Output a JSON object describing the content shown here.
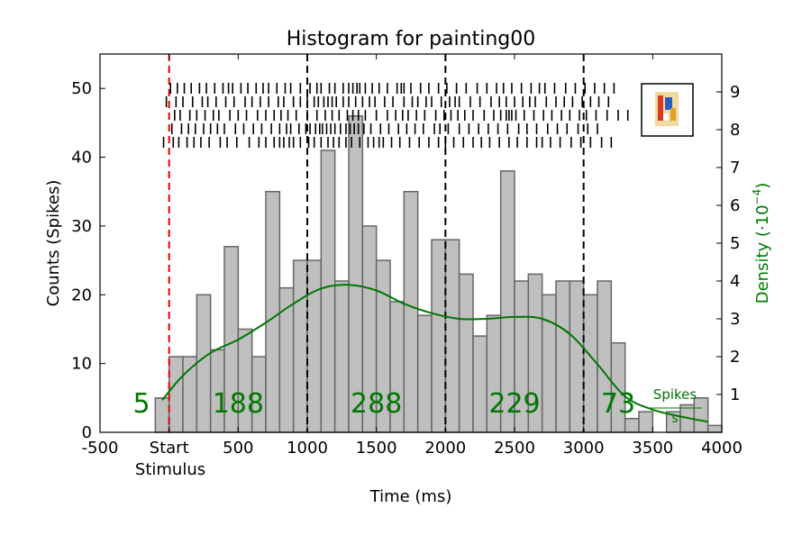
{
  "chart_data": {
    "type": "bar",
    "title": "Histogram for painting00",
    "xlabel": "Time (ms)",
    "ylabel": "Counts (Spikes)",
    "y2label": "Density (·10",
    "y2label_exp": "−4",
    "y2label_close": ")",
    "xlim": [
      -500,
      4000
    ],
    "ylim": [
      0,
      55
    ],
    "y2lim": [
      0,
      10
    ],
    "x_ticks": [
      "-500",
      "Start",
      "500",
      "1000",
      "1500",
      "2000",
      "2500",
      "3000",
      "3500",
      "4000"
    ],
    "x_tick_values": [
      -500,
      0,
      500,
      1000,
      1500,
      2000,
      2500,
      3000,
      3500,
      4000
    ],
    "x_tick_sublabel": "Stimulus",
    "y_ticks": [
      0,
      10,
      20,
      30,
      40,
      50
    ],
    "y2_ticks": [
      1,
      2,
      3,
      4,
      5,
      6,
      7,
      8,
      9
    ],
    "bin_width": 100,
    "histogram": {
      "bin_starts": [
        -100,
        0,
        100,
        200,
        300,
        400,
        500,
        600,
        700,
        800,
        900,
        1000,
        1100,
        1200,
        1300,
        1400,
        1500,
        1600,
        1700,
        1800,
        1900,
        2000,
        2100,
        2200,
        2300,
        2400,
        2500,
        2600,
        2700,
        2800,
        2900,
        3000,
        3100,
        3200,
        3300,
        3400,
        3500,
        3600,
        3700,
        3800,
        3900
      ],
      "counts": [
        5,
        11,
        11,
        20,
        12,
        27,
        15,
        11,
        35,
        21,
        25,
        25,
        41,
        22,
        46,
        30,
        25,
        19,
        35,
        17,
        28,
        28,
        23,
        14,
        17,
        38,
        22,
        23,
        20,
        22,
        22,
        20,
        22,
        13,
        2,
        3,
        0,
        3,
        4,
        5,
        1
      ]
    },
    "density_series": {
      "name": "density",
      "color": "#007700",
      "x": [
        -50,
        100,
        300,
        500,
        700,
        900,
        1100,
        1300,
        1500,
        1700,
        1900,
        2100,
        2300,
        2500,
        2700,
        2900,
        3100,
        3300,
        3500,
        3700,
        3900
      ],
      "y": [
        0.85,
        1.5,
        2.1,
        2.45,
        2.9,
        3.4,
        3.8,
        3.9,
        3.75,
        3.4,
        3.15,
        3.0,
        3.0,
        3.05,
        3.0,
        2.6,
        1.8,
        0.95,
        0.6,
        0.42,
        0.28
      ]
    },
    "segment_boundaries": [
      1000,
      2000,
      3000
    ],
    "stimulus_onset": 0,
    "segment_counts": [
      {
        "label": "5",
        "x": -200
      },
      {
        "label": "188",
        "x": 500
      },
      {
        "label": "288",
        "x": 1500
      },
      {
        "label": "229",
        "x": 2500
      },
      {
        "label": "73",
        "x": 3250
      }
    ],
    "density_unit_numerator": "Spikes",
    "density_unit_denominator": "s",
    "raster_trials": 5,
    "raster_spikes": [
      [
        10,
        60,
        110,
        160,
        220,
        270,
        330,
        390,
        430,
        460,
        520,
        570,
        630,
        680,
        720,
        780,
        840,
        880,
        950,
        1020,
        1070,
        1100,
        1160,
        1200,
        1260,
        1300,
        1330,
        1360,
        1380,
        1420,
        1470,
        1520,
        1580,
        1650,
        1680,
        1700,
        1750,
        1820,
        1880,
        1950,
        2010,
        2080,
        2150,
        2230,
        2300,
        2370,
        2420,
        2480,
        2550,
        2620,
        2680,
        2720,
        2790,
        2870,
        2940,
        3010,
        3080,
        3150,
        3220
      ],
      [
        -20,
        50,
        100,
        170,
        240,
        280,
        340,
        410,
        470,
        550,
        600,
        660,
        720,
        790,
        830,
        900,
        950,
        1000,
        1050,
        1080,
        1120,
        1150,
        1180,
        1210,
        1260,
        1300,
        1350,
        1400,
        1450,
        1490,
        1560,
        1620,
        1700,
        1760,
        1800,
        1860,
        1900,
        1970,
        2030,
        2070,
        2100,
        2180,
        2250,
        2330,
        2390,
        2440,
        2500,
        2560,
        2610,
        2650,
        2730,
        2800,
        2860,
        2920,
        2990,
        3050,
        3110,
        3180
      ],
      [
        40,
        80,
        150,
        200,
        260,
        320,
        360,
        440,
        500,
        560,
        640,
        700,
        760,
        810,
        860,
        920,
        1000,
        1070,
        1130,
        1180,
        1230,
        1290,
        1330,
        1370,
        1420,
        1500,
        1580,
        1640,
        1690,
        1730,
        1790,
        1850,
        1930,
        1990,
        2040,
        2090,
        2140,
        2200,
        2280,
        2350,
        2400,
        2440,
        2460,
        2480,
        2510,
        2570,
        2640,
        2710,
        2770,
        2840,
        2900,
        2970,
        3020,
        3090,
        3170,
        3250,
        3320
      ],
      [
        20,
        90,
        140,
        190,
        250,
        300,
        350,
        400,
        480,
        540,
        610,
        670,
        740,
        800,
        850,
        880,
        940,
        990,
        1020,
        1060,
        1090,
        1110,
        1140,
        1170,
        1200,
        1240,
        1280,
        1310,
        1340,
        1370,
        1410,
        1460,
        1530,
        1590,
        1660,
        1720,
        1780,
        1840,
        1920,
        1960,
        2020,
        2100,
        2170,
        2240,
        2310,
        2380,
        2450,
        2530,
        2590,
        2660,
        2740,
        2810,
        2880,
        2960,
        3030,
        3100
      ],
      [
        -40,
        30,
        70,
        130,
        180,
        230,
        290,
        370,
        420,
        490,
        580,
        650,
        700,
        760,
        800,
        830,
        870,
        900,
        950,
        1010,
        1050,
        1100,
        1150,
        1190,
        1230,
        1280,
        1320,
        1380,
        1440,
        1480,
        1520,
        1550,
        1610,
        1670,
        1740,
        1810,
        1880,
        1950,
        2000,
        2060,
        2130,
        2200,
        2260,
        2320,
        2390,
        2460,
        2520,
        2590,
        2660,
        2700,
        2760,
        2830,
        2910,
        2980,
        3050,
        3130,
        3200
      ]
    ]
  }
}
